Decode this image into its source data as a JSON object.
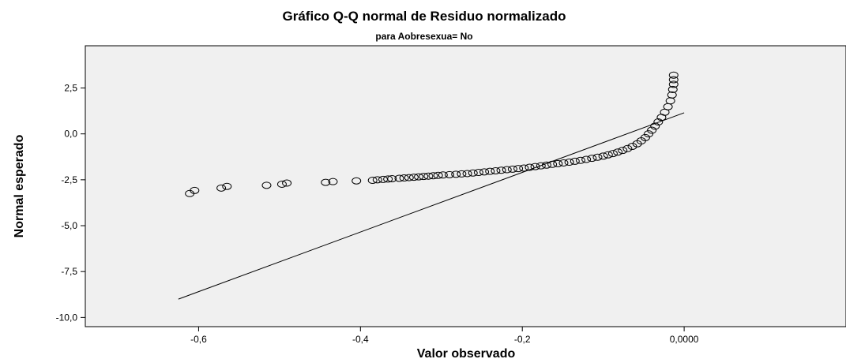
{
  "chart_data": {
    "type": "scatter",
    "title": "Gráfico Q-Q normal de Residuo normalizado",
    "subtitle": "para Aobresexua= No",
    "xlabel": "Valor observado",
    "ylabel": "Normal esperado",
    "xlim": [
      -0.74,
      0.2
    ],
    "ylim": [
      -10.5,
      4.8
    ],
    "xticks": [
      {
        "value": -0.6,
        "label": "-0,6"
      },
      {
        "value": -0.4,
        "label": "-0,4"
      },
      {
        "value": -0.2,
        "label": "-0,2"
      },
      {
        "value": 0.0,
        "label": "0,0000"
      }
    ],
    "yticks": [
      {
        "value": 2.5,
        "label": "2,5"
      },
      {
        "value": 0.0,
        "label": "0,0"
      },
      {
        "value": -2.5,
        "label": "-2,5"
      },
      {
        "value": -5.0,
        "label": "-5,0"
      },
      {
        "value": -7.5,
        "label": "-7,5"
      },
      {
        "value": -10.0,
        "label": "-10,0"
      }
    ],
    "reference_line": {
      "x": [
        -0.625,
        0.0
      ],
      "y": [
        -9.0,
        1.15
      ]
    },
    "points": [
      {
        "x": -0.611,
        "y": -3.25
      },
      {
        "x": -0.605,
        "y": -3.08
      },
      {
        "x": -0.572,
        "y": -2.95
      },
      {
        "x": -0.565,
        "y": -2.86
      },
      {
        "x": -0.516,
        "y": -2.8
      },
      {
        "x": -0.497,
        "y": -2.74
      },
      {
        "x": -0.491,
        "y": -2.68
      },
      {
        "x": -0.443,
        "y": -2.64
      },
      {
        "x": -0.434,
        "y": -2.6
      },
      {
        "x": -0.405,
        "y": -2.56
      },
      {
        "x": -0.385,
        "y": -2.53
      },
      {
        "x": -0.379,
        "y": -2.5
      },
      {
        "x": -0.372,
        "y": -2.48
      },
      {
        "x": -0.366,
        "y": -2.46
      },
      {
        "x": -0.361,
        "y": -2.44
      },
      {
        "x": -0.352,
        "y": -2.42
      },
      {
        "x": -0.346,
        "y": -2.4
      },
      {
        "x": -0.34,
        "y": -2.38
      },
      {
        "x": -0.334,
        "y": -2.36
      },
      {
        "x": -0.328,
        "y": -2.34
      },
      {
        "x": -0.322,
        "y": -2.32
      },
      {
        "x": -0.316,
        "y": -2.3
      },
      {
        "x": -0.31,
        "y": -2.28
      },
      {
        "x": -0.304,
        "y": -2.26
      },
      {
        "x": -0.298,
        "y": -2.24
      },
      {
        "x": -0.29,
        "y": -2.22
      },
      {
        "x": -0.282,
        "y": -2.2
      },
      {
        "x": -0.275,
        "y": -2.18
      },
      {
        "x": -0.268,
        "y": -2.16
      },
      {
        "x": -0.261,
        "y": -2.13
      },
      {
        "x": -0.254,
        "y": -2.1
      },
      {
        "x": -0.247,
        "y": -2.07
      },
      {
        "x": -0.24,
        "y": -2.04
      },
      {
        "x": -0.233,
        "y": -2.01
      },
      {
        "x": -0.226,
        "y": -1.98
      },
      {
        "x": -0.219,
        "y": -1.95
      },
      {
        "x": -0.212,
        "y": -1.92
      },
      {
        "x": -0.205,
        "y": -1.89
      },
      {
        "x": -0.198,
        "y": -1.86
      },
      {
        "x": -0.191,
        "y": -1.82
      },
      {
        "x": -0.184,
        "y": -1.78
      },
      {
        "x": -0.177,
        "y": -1.74
      },
      {
        "x": -0.17,
        "y": -1.7
      },
      {
        "x": -0.163,
        "y": -1.66
      },
      {
        "x": -0.156,
        "y": -1.62
      },
      {
        "x": -0.149,
        "y": -1.58
      },
      {
        "x": -0.142,
        "y": -1.54
      },
      {
        "x": -0.135,
        "y": -1.49
      },
      {
        "x": -0.128,
        "y": -1.44
      },
      {
        "x": -0.121,
        "y": -1.39
      },
      {
        "x": -0.114,
        "y": -1.33
      },
      {
        "x": -0.107,
        "y": -1.27
      },
      {
        "x": -0.1,
        "y": -1.21
      },
      {
        "x": -0.094,
        "y": -1.14
      },
      {
        "x": -0.088,
        "y": -1.07
      },
      {
        "x": -0.082,
        "y": -0.99
      },
      {
        "x": -0.076,
        "y": -0.9
      },
      {
        "x": -0.07,
        "y": -0.8
      },
      {
        "x": -0.064,
        "y": -0.68
      },
      {
        "x": -0.058,
        "y": -0.54
      },
      {
        "x": -0.053,
        "y": -0.38
      },
      {
        "x": -0.048,
        "y": -0.2
      },
      {
        "x": -0.044,
        "y": 0.0
      },
      {
        "x": -0.04,
        "y": 0.2
      },
      {
        "x": -0.036,
        "y": 0.42
      },
      {
        "x": -0.032,
        "y": 0.65
      },
      {
        "x": -0.028,
        "y": 0.9
      },
      {
        "x": -0.024,
        "y": 1.18
      },
      {
        "x": -0.02,
        "y": 1.48
      },
      {
        "x": -0.017,
        "y": 1.8
      },
      {
        "x": -0.015,
        "y": 2.12
      },
      {
        "x": -0.014,
        "y": 2.42
      },
      {
        "x": -0.013,
        "y": 2.7
      },
      {
        "x": -0.013,
        "y": 2.95
      },
      {
        "x": -0.013,
        "y": 3.2
      }
    ]
  }
}
